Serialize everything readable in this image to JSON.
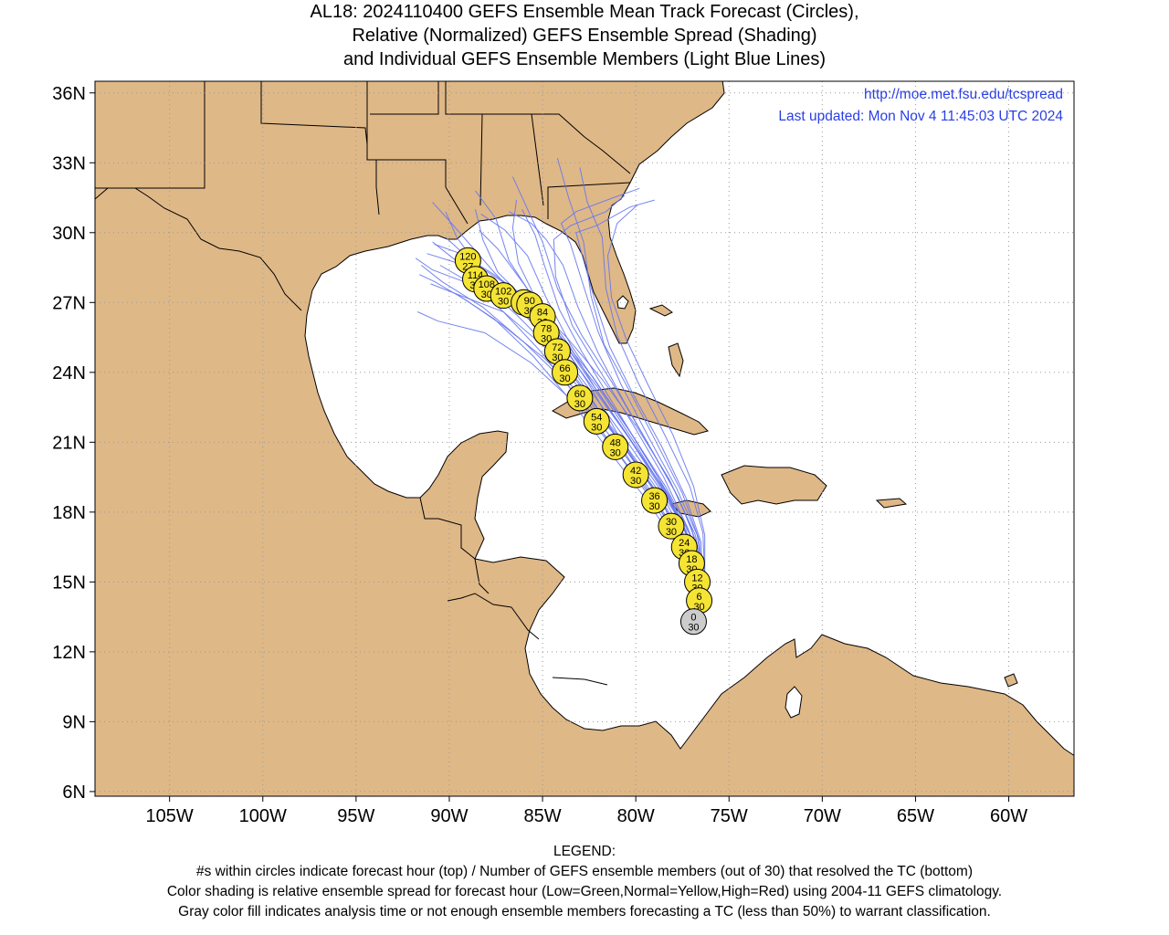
{
  "title": {
    "line1": "AL18: 2024110400 GEFS Ensemble Mean Track Forecast (Circles),",
    "line2": "Relative (Normalized) GEFS Ensemble Spread (Shading)",
    "line3": "and Individual GEFS Ensemble Members (Light Blue Lines)"
  },
  "credits": {
    "url": "http://moe.met.fsu.edu/tcspread",
    "updated": "Last updated: Mon Nov 4 11:45:03 UTC 2024"
  },
  "map": {
    "lon_range": [
      -109,
      -56.5
    ],
    "lat_range": [
      5.8,
      36.5
    ],
    "lon_ticks": [
      "105W",
      "100W",
      "95W",
      "90W",
      "85W",
      "80W",
      "75W",
      "70W",
      "65W",
      "60W"
    ],
    "lat_ticks": [
      "6N",
      "9N",
      "12N",
      "15N",
      "18N",
      "21N",
      "24N",
      "27N",
      "30N",
      "33N",
      "36N"
    ],
    "grid": "dotted",
    "land_color": "#dfb887",
    "ocean_color": "#ffffff",
    "member_track_color": "#6677ee",
    "circle_normal_color": "#f5e433",
    "circle_analysis_color": "#cccccc"
  },
  "track": [
    {
      "hour": "0",
      "members": "30",
      "lat": 13.3,
      "lon": -76.9,
      "fill": "gray"
    },
    {
      "hour": "6",
      "members": "30",
      "lat": 14.2,
      "lon": -76.6,
      "fill": "yellow"
    },
    {
      "hour": "12",
      "members": "30",
      "lat": 15.0,
      "lon": -76.7,
      "fill": "yellow"
    },
    {
      "hour": "18",
      "members": "30",
      "lat": 15.8,
      "lon": -77.0,
      "fill": "yellow"
    },
    {
      "hour": "24",
      "members": "30",
      "lat": 16.5,
      "lon": -77.4,
      "fill": "yellow"
    },
    {
      "hour": "30",
      "members": "30",
      "lat": 17.4,
      "lon": -78.1,
      "fill": "yellow"
    },
    {
      "hour": "36",
      "members": "30",
      "lat": 18.5,
      "lon": -79.0,
      "fill": "yellow"
    },
    {
      "hour": "42",
      "members": "30",
      "lat": 19.6,
      "lon": -80.0,
      "fill": "yellow"
    },
    {
      "hour": "48",
      "members": "30",
      "lat": 20.8,
      "lon": -81.1,
      "fill": "yellow"
    },
    {
      "hour": "54",
      "members": "30",
      "lat": 21.9,
      "lon": -82.1,
      "fill": "yellow"
    },
    {
      "hour": "60",
      "members": "30",
      "lat": 22.9,
      "lon": -83.0,
      "fill": "yellow"
    },
    {
      "hour": "66",
      "members": "30",
      "lat": 24.0,
      "lon": -83.8,
      "fill": "yellow"
    },
    {
      "hour": "72",
      "members": "30",
      "lat": 24.9,
      "lon": -84.2,
      "fill": "yellow"
    },
    {
      "hour": "78",
      "members": "30",
      "lat": 25.7,
      "lon": -84.8,
      "fill": "yellow"
    },
    {
      "hour": "84",
      "members": "30",
      "lat": 26.4,
      "lon": -85.0,
      "fill": "yellow"
    },
    {
      "hour": "90",
      "members": "30",
      "lat": 26.9,
      "lon": -85.7,
      "fill": "yellow"
    },
    {
      "hour": "96",
      "members": "30",
      "lat": 27.0,
      "lon": -86.0,
      "fill": "yellow"
    },
    {
      "hour": "102",
      "members": "30",
      "lat": 27.3,
      "lon": -87.1,
      "fill": "yellow"
    },
    {
      "hour": "108",
      "members": "30",
      "lat": 27.6,
      "lon": -88.0,
      "fill": "yellow"
    },
    {
      "hour": "114",
      "members": "30",
      "lat": 28.0,
      "lon": -88.6,
      "fill": "yellow"
    },
    {
      "hour": "120",
      "members": "27",
      "lat": 28.8,
      "lon": -89.0,
      "fill": "yellow"
    }
  ],
  "members": [
    [
      [
        -76.6,
        13.8
      ],
      [
        -76.7,
        15.0
      ],
      [
        -77.4,
        16.8
      ],
      [
        -79.0,
        18.9
      ],
      [
        -81.0,
        21.4
      ],
      [
        -82.6,
        23.6
      ],
      [
        -84.3,
        25.7
      ],
      [
        -86.4,
        27.5
      ],
      [
        -88.7,
        28.7
      ],
      [
        -90.2,
        29.8
      ]
    ],
    [
      [
        -76.6,
        13.8
      ],
      [
        -76.9,
        15.2
      ],
      [
        -77.8,
        17.0
      ],
      [
        -79.4,
        19.0
      ],
      [
        -81.3,
        21.5
      ],
      [
        -83.1,
        23.8
      ],
      [
        -85.0,
        25.9
      ],
      [
        -87.3,
        27.7
      ],
      [
        -89.6,
        28.7
      ],
      [
        -91.2,
        29.1
      ]
    ],
    [
      [
        -76.6,
        13.8
      ],
      [
        -76.5,
        15.0
      ],
      [
        -77.0,
        16.7
      ],
      [
        -78.3,
        18.6
      ],
      [
        -80.3,
        21.1
      ],
      [
        -82.0,
        23.1
      ],
      [
        -83.6,
        25.2
      ],
      [
        -85.5,
        27.2
      ],
      [
        -86.8,
        28.8
      ],
      [
        -87.5,
        30.6
      ],
      [
        -88.6,
        31.8
      ]
    ],
    [
      [
        -76.6,
        13.8
      ],
      [
        -76.4,
        15.2
      ],
      [
        -76.8,
        17.0
      ],
      [
        -77.9,
        18.9
      ],
      [
        -79.6,
        21.3
      ],
      [
        -81.3,
        23.6
      ],
      [
        -82.9,
        25.6
      ],
      [
        -84.2,
        27.6
      ],
      [
        -85.0,
        29.6
      ],
      [
        -85.8,
        31.0
      ],
      [
        -86.6,
        32.4
      ]
    ],
    [
      [
        -76.6,
        13.8
      ],
      [
        -76.4,
        15.0
      ],
      [
        -76.6,
        16.8
      ],
      [
        -77.5,
        18.8
      ],
      [
        -78.9,
        21.0
      ],
      [
        -80.4,
        23.3
      ],
      [
        -81.7,
        25.2
      ],
      [
        -82.4,
        27.3
      ],
      [
        -82.8,
        29.6
      ],
      [
        -83.6,
        31.5
      ],
      [
        -84.2,
        33.2
      ]
    ],
    [
      [
        -76.6,
        13.8
      ],
      [
        -76.3,
        15.2
      ],
      [
        -76.4,
        17.1
      ],
      [
        -77.1,
        19.1
      ],
      [
        -78.5,
        21.4
      ],
      [
        -79.9,
        23.6
      ],
      [
        -81.0,
        25.6
      ],
      [
        -81.6,
        27.6
      ],
      [
        -81.8,
        29.8
      ],
      [
        -82.6,
        31.3
      ],
      [
        -83.0,
        32.8
      ]
    ],
    [
      [
        -76.6,
        13.8
      ],
      [
        -76.5,
        15.4
      ],
      [
        -77.2,
        17.3
      ],
      [
        -78.5,
        19.5
      ],
      [
        -80.1,
        21.7
      ],
      [
        -81.8,
        23.9
      ],
      [
        -83.4,
        26.0
      ],
      [
        -84.3,
        28.1
      ],
      [
        -84.4,
        29.7
      ],
      [
        -83.5,
        30.3
      ],
      [
        -81.6,
        30.9
      ],
      [
        -80.6,
        31.6
      ]
    ],
    [
      [
        -76.6,
        13.8
      ],
      [
        -76.6,
        15.3
      ],
      [
        -77.3,
        17.2
      ],
      [
        -78.8,
        19.1
      ],
      [
        -80.7,
        21.3
      ],
      [
        -82.5,
        23.3
      ],
      [
        -84.4,
        25.3
      ],
      [
        -86.6,
        26.9
      ],
      [
        -88.9,
        27.8
      ],
      [
        -90.9,
        28.4
      ],
      [
        -91.8,
        28.9
      ]
    ],
    [
      [
        -76.6,
        13.8
      ],
      [
        -76.8,
        15.0
      ],
      [
        -77.6,
        16.7
      ],
      [
        -79.1,
        18.6
      ],
      [
        -81.1,
        20.7
      ],
      [
        -83.3,
        22.7
      ],
      [
        -85.6,
        24.4
      ],
      [
        -88.1,
        25.7
      ],
      [
        -90.6,
        26.2
      ],
      [
        -91.7,
        26.6
      ]
    ],
    [
      [
        -76.6,
        13.8
      ],
      [
        -76.7,
        15.1
      ],
      [
        -77.6,
        17.0
      ],
      [
        -79.1,
        19.1
      ],
      [
        -81.0,
        21.2
      ],
      [
        -82.9,
        23.2
      ],
      [
        -84.9,
        25.1
      ],
      [
        -87.1,
        26.6
      ],
      [
        -89.4,
        27.3
      ],
      [
        -91.0,
        27.8
      ]
    ],
    [
      [
        -76.6,
        13.8
      ],
      [
        -76.5,
        15.1
      ],
      [
        -77.0,
        16.9
      ],
      [
        -78.4,
        18.9
      ],
      [
        -80.2,
        21.0
      ],
      [
        -82.0,
        23.0
      ],
      [
        -83.8,
        25.0
      ],
      [
        -85.8,
        26.8
      ],
      [
        -87.6,
        28.3
      ],
      [
        -88.9,
        29.5
      ],
      [
        -90.1,
        30.6
      ],
      [
        -90.9,
        31.3
      ]
    ],
    [
      [
        -76.6,
        13.8
      ],
      [
        -76.4,
        15.1
      ],
      [
        -76.7,
        17.0
      ],
      [
        -77.8,
        19.0
      ],
      [
        -79.3,
        21.2
      ],
      [
        -80.8,
        23.5
      ],
      [
        -82.0,
        25.7
      ],
      [
        -82.8,
        27.7
      ],
      [
        -83.5,
        29.5
      ],
      [
        -84.0,
        30.4
      ],
      [
        -83.2,
        30.9
      ],
      [
        -81.2,
        31.5
      ],
      [
        -79.8,
        31.9
      ]
    ],
    [
      [
        -76.6,
        13.8
      ],
      [
        -76.6,
        15.2
      ],
      [
        -77.3,
        17.1
      ],
      [
        -78.7,
        19.2
      ],
      [
        -80.6,
        21.5
      ],
      [
        -82.5,
        23.7
      ],
      [
        -84.3,
        25.8
      ],
      [
        -86.0,
        27.8
      ],
      [
        -87.4,
        29.3
      ],
      [
        -88.4,
        30.1
      ]
    ],
    [
      [
        -76.6,
        13.8
      ],
      [
        -76.8,
        15.2
      ],
      [
        -77.5,
        17.0
      ],
      [
        -78.9,
        18.9
      ],
      [
        -80.8,
        21.0
      ],
      [
        -82.8,
        22.9
      ],
      [
        -84.9,
        24.6
      ],
      [
        -87.1,
        26.0
      ],
      [
        -89.1,
        27.1
      ],
      [
        -90.8,
        27.9
      ],
      [
        -91.6,
        28.2
      ]
    ],
    [
      [
        -76.6,
        13.8
      ],
      [
        -76.7,
        15.2
      ],
      [
        -77.2,
        16.9
      ],
      [
        -78.4,
        18.8
      ],
      [
        -80.0,
        20.9
      ],
      [
        -81.8,
        23.1
      ],
      [
        -83.6,
        25.0
      ],
      [
        -85.2,
        26.9
      ],
      [
        -86.3,
        28.7
      ],
      [
        -86.6,
        30.2
      ],
      [
        -86.4,
        31.4
      ]
    ],
    [
      [
        -76.6,
        13.8
      ],
      [
        -76.5,
        15.3
      ],
      [
        -77.0,
        17.3
      ],
      [
        -78.2,
        19.4
      ],
      [
        -79.9,
        21.6
      ],
      [
        -81.8,
        23.7
      ],
      [
        -83.7,
        25.5
      ],
      [
        -85.7,
        27.1
      ],
      [
        -87.6,
        28.2
      ],
      [
        -89.4,
        29.1
      ],
      [
        -90.8,
        29.5
      ]
    ],
    [
      [
        -76.6,
        13.8
      ],
      [
        -76.8,
        15.0
      ],
      [
        -77.8,
        16.6
      ],
      [
        -79.5,
        18.6
      ],
      [
        -81.5,
        20.7
      ],
      [
        -83.5,
        22.8
      ],
      [
        -85.5,
        24.7
      ],
      [
        -87.6,
        26.3
      ],
      [
        -89.5,
        27.3
      ]
    ],
    [
      [
        -76.6,
        13.8
      ],
      [
        -76.4,
        15.0
      ],
      [
        -76.5,
        16.7
      ],
      [
        -77.3,
        18.6
      ],
      [
        -78.6,
        20.8
      ],
      [
        -80.1,
        23.0
      ],
      [
        -81.4,
        25.1
      ],
      [
        -82.2,
        27.1
      ],
      [
        -82.9,
        29.1
      ],
      [
        -83.2,
        30.0
      ],
      [
        -82.1,
        30.3
      ],
      [
        -80.3,
        31.1
      ],
      [
        -79.0,
        31.4
      ]
    ],
    [
      [
        -76.6,
        13.8
      ],
      [
        -76.6,
        15.1
      ],
      [
        -77.1,
        16.8
      ],
      [
        -78.2,
        18.7
      ],
      [
        -79.8,
        20.8
      ],
      [
        -81.4,
        22.9
      ],
      [
        -82.9,
        24.9
      ],
      [
        -84.1,
        26.7
      ],
      [
        -84.9,
        28.6
      ],
      [
        -85.4,
        29.9
      ],
      [
        -86.1,
        31.0
      ]
    ],
    [
      [
        -76.6,
        13.8
      ],
      [
        -76.9,
        15.3
      ],
      [
        -77.9,
        17.2
      ],
      [
        -79.6,
        19.4
      ],
      [
        -81.7,
        21.6
      ],
      [
        -83.8,
        23.6
      ],
      [
        -86.0,
        25.3
      ],
      [
        -88.2,
        26.8
      ],
      [
        -90.4,
        27.9
      ],
      [
        -91.5,
        28.6
      ]
    ],
    [
      [
        -76.6,
        13.8
      ],
      [
        -76.5,
        15.0
      ],
      [
        -76.8,
        16.8
      ],
      [
        -77.7,
        18.6
      ],
      [
        -79.1,
        20.6
      ],
      [
        -80.6,
        22.7
      ],
      [
        -82.0,
        24.8
      ],
      [
        -83.1,
        26.8
      ],
      [
        -83.9,
        28.6
      ],
      [
        -84.8,
        29.7
      ],
      [
        -85.6,
        30.4
      ],
      [
        -86.8,
        30.9
      ]
    ],
    [
      [
        -76.6,
        13.8
      ],
      [
        -76.7,
        15.1
      ],
      [
        -77.5,
        16.9
      ],
      [
        -79.0,
        18.9
      ],
      [
        -80.9,
        21.1
      ],
      [
        -82.8,
        23.3
      ],
      [
        -84.7,
        25.4
      ],
      [
        -86.7,
        27.1
      ],
      [
        -88.5,
        28.6
      ],
      [
        -89.6,
        29.8
      ],
      [
        -90.2,
        30.9
      ]
    ],
    [
      [
        -76.6,
        13.8
      ],
      [
        -76.8,
        15.0
      ],
      [
        -77.8,
        16.8
      ],
      [
        -79.4,
        18.8
      ],
      [
        -81.3,
        20.9
      ],
      [
        -83.2,
        23.0
      ],
      [
        -85.1,
        24.9
      ],
      [
        -87.1,
        26.6
      ],
      [
        -89.0,
        27.9
      ],
      [
        -90.5,
        28.6
      ]
    ],
    [
      [
        -76.6,
        13.8
      ],
      [
        -76.3,
        15.1
      ],
      [
        -76.3,
        17.0
      ],
      [
        -76.9,
        19.1
      ],
      [
        -78.0,
        21.3
      ],
      [
        -79.3,
        23.4
      ],
      [
        -80.5,
        25.4
      ],
      [
        -81.3,
        27.2
      ],
      [
        -81.5,
        29.0
      ],
      [
        -81.0,
        30.4
      ],
      [
        -79.9,
        31.2
      ]
    ],
    [
      [
        -76.6,
        13.8
      ],
      [
        -76.7,
        15.3
      ],
      [
        -77.4,
        17.3
      ],
      [
        -78.8,
        19.5
      ],
      [
        -80.5,
        21.7
      ],
      [
        -82.3,
        23.8
      ],
      [
        -84.1,
        25.6
      ],
      [
        -85.9,
        27.1
      ],
      [
        -87.4,
        28.3
      ],
      [
        -88.2,
        29.7
      ],
      [
        -88.6,
        31.0
      ]
    ],
    [
      [
        -76.6,
        13.8
      ],
      [
        -76.5,
        15.2
      ],
      [
        -77.1,
        17.1
      ],
      [
        -78.4,
        19.1
      ],
      [
        -80.1,
        21.2
      ],
      [
        -81.9,
        23.3
      ],
      [
        -83.5,
        25.2
      ],
      [
        -84.8,
        27.2
      ],
      [
        -85.8,
        29.0
      ],
      [
        -87.0,
        30.1
      ],
      [
        -88.3,
        30.8
      ]
    ],
    [
      [
        -76.6,
        13.8
      ],
      [
        -76.6,
        15.0
      ],
      [
        -77.2,
        16.7
      ],
      [
        -78.5,
        18.6
      ],
      [
        -80.4,
        20.7
      ],
      [
        -82.3,
        22.7
      ],
      [
        -84.2,
        24.7
      ],
      [
        -86.3,
        26.4
      ],
      [
        -88.2,
        27.8
      ],
      [
        -89.8,
        28.9
      ],
      [
        -90.9,
        29.6
      ]
    ]
  ],
  "legend": {
    "heading": "LEGEND:",
    "line1": "#s within circles indicate forecast hour (top) / Number of GEFS ensemble members (out of 30) that resolved the TC (bottom)",
    "line2": "Color shading is relative ensemble spread for forecast hour (Low=Green,Normal=Yellow,High=Red) using 2004-11 GEFS climatology.",
    "line3": "Gray color fill indicates analysis time or not enough ensemble members forecasting a TC (less than 50%) to warrant classification."
  }
}
